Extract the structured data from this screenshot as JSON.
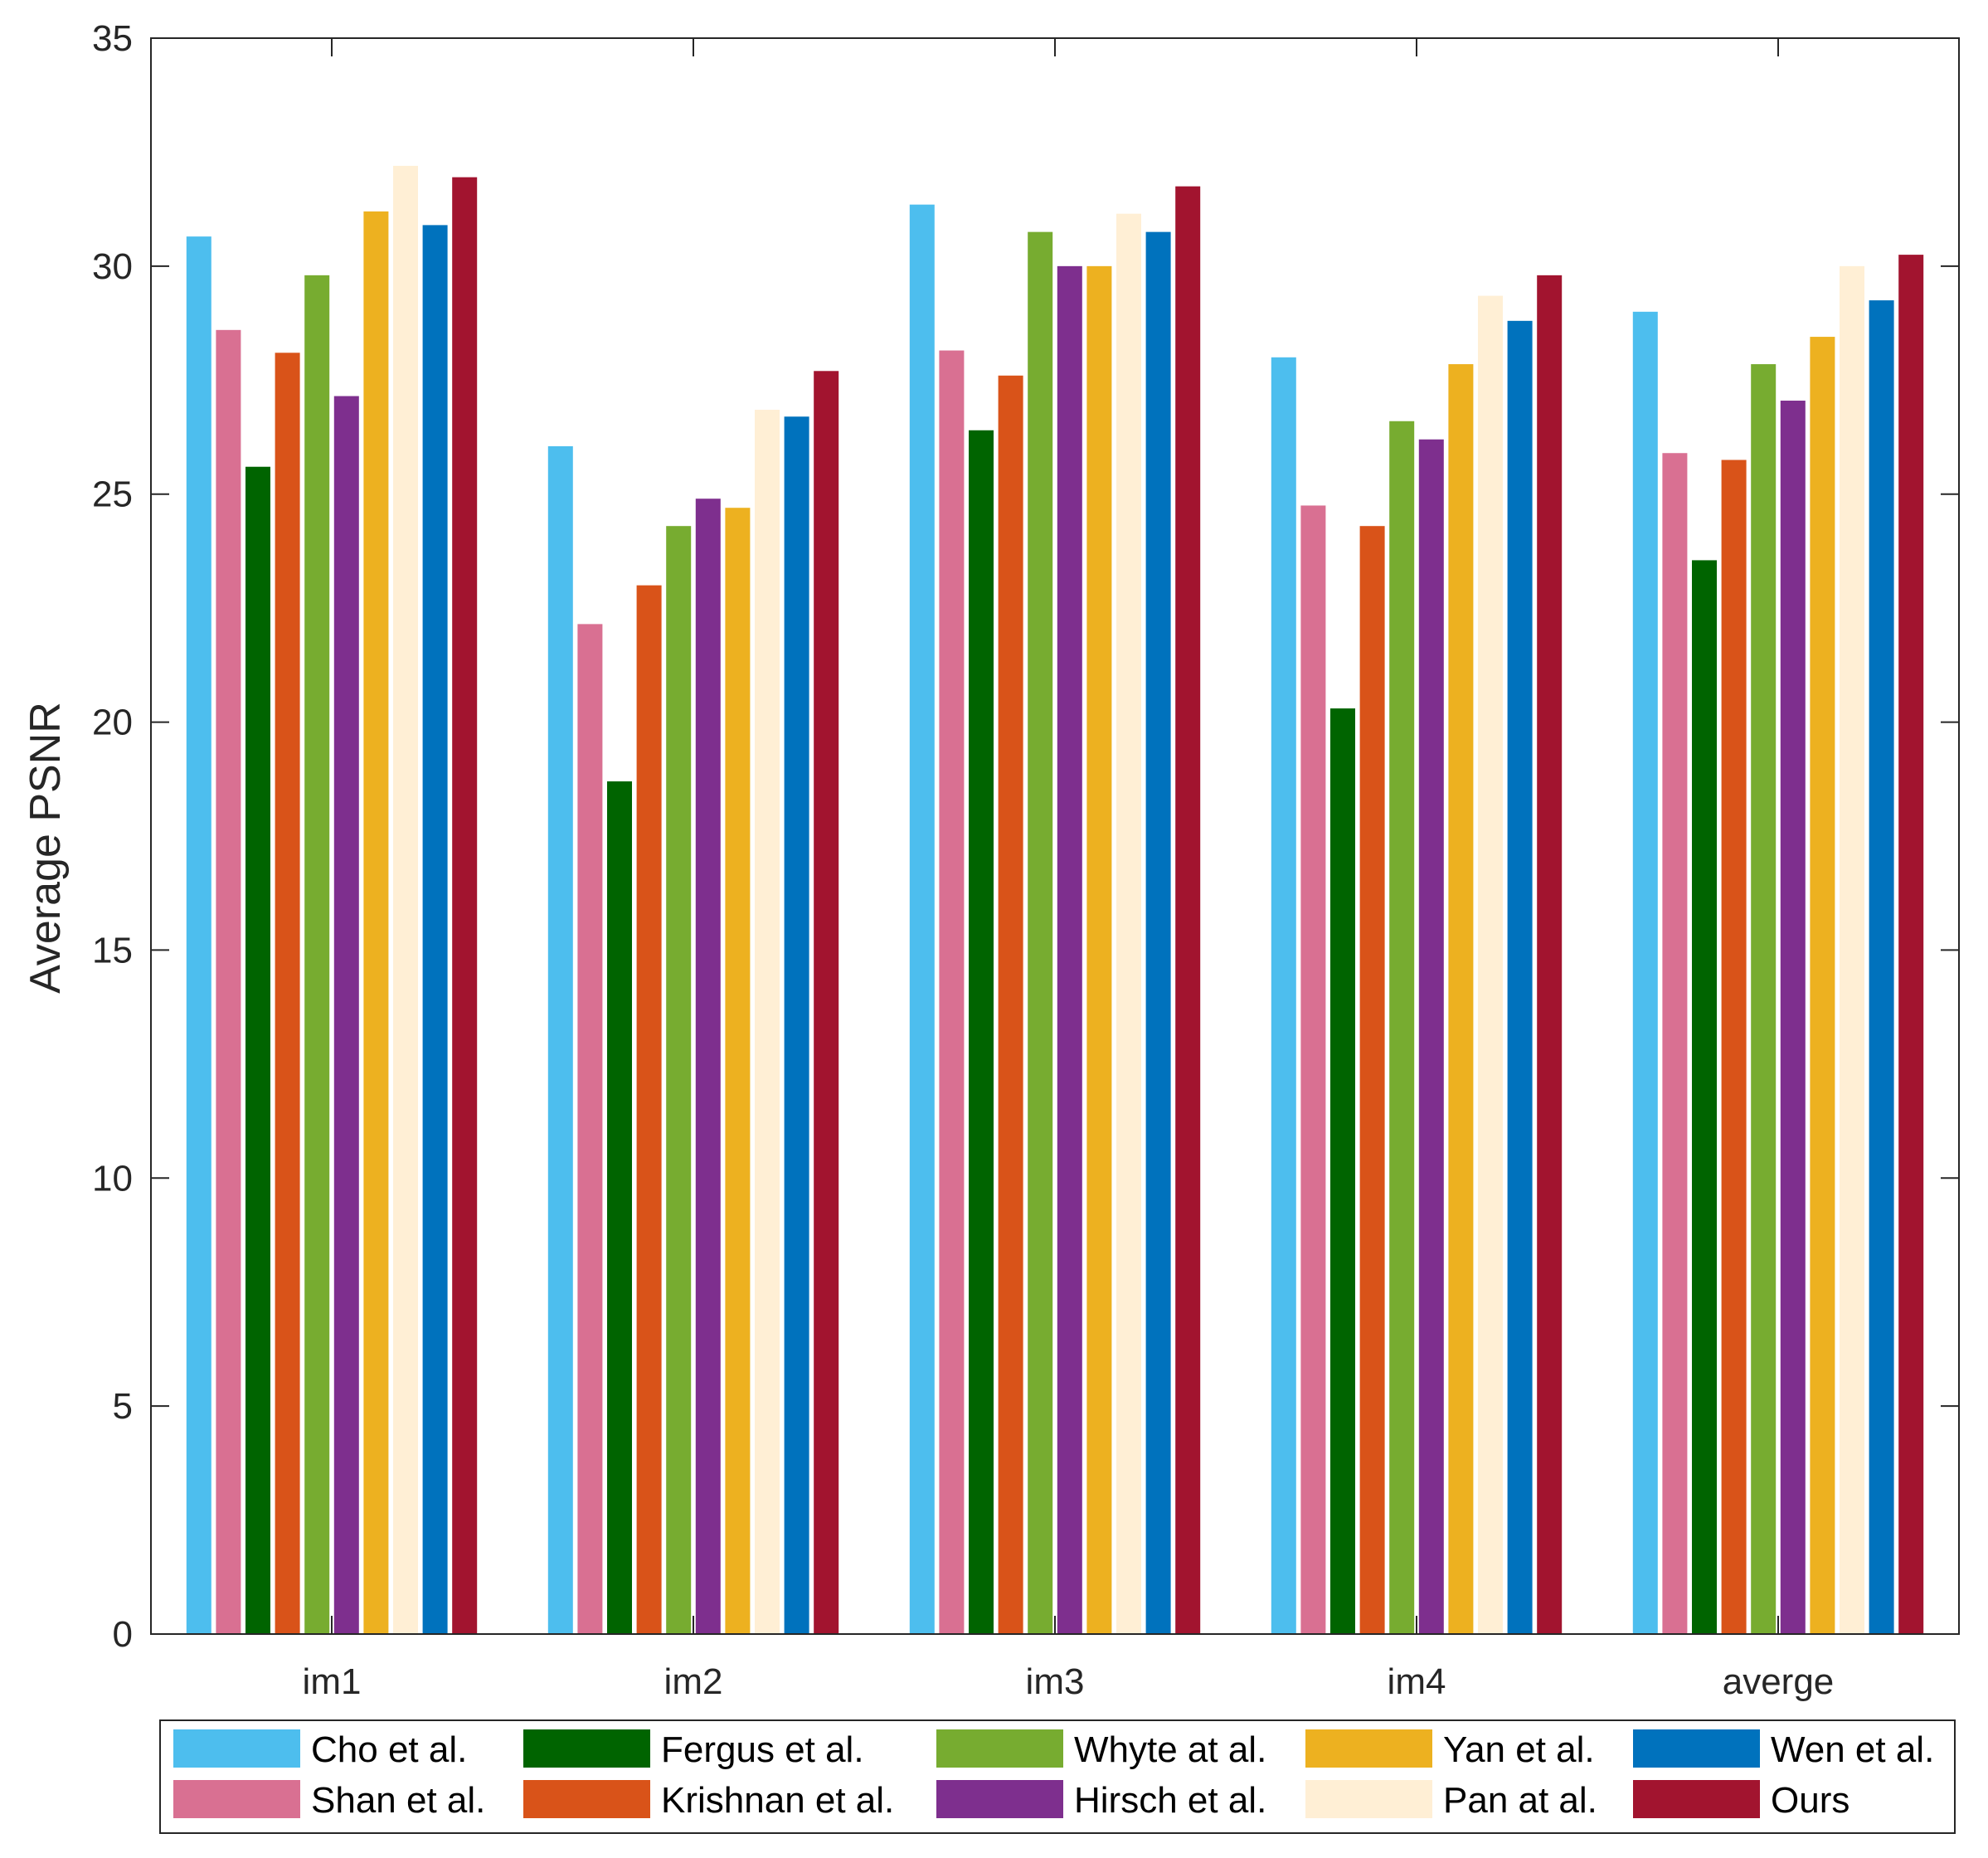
{
  "chart_data": {
    "type": "bar",
    "title": "",
    "xlabel": "",
    "ylabel": "Average PSNR",
    "ylim": [
      0,
      35
    ],
    "yticks": [
      "0",
      "5",
      "10",
      "15",
      "20",
      "25",
      "30",
      "35"
    ],
    "grid": false,
    "legend_position": "bottom",
    "categories": [
      "im1",
      "im2",
      "im3",
      "im4",
      "averge"
    ],
    "series": [
      {
        "name": "Cho et al.",
        "color": "#4DBEEE",
        "values": [
          30.65,
          26.05,
          31.35,
          28.0,
          29.0
        ]
      },
      {
        "name": "Shan et al.",
        "color": "#D97092",
        "values": [
          28.6,
          22.15,
          28.15,
          24.75,
          25.9
        ]
      },
      {
        "name": "Fergus et al.",
        "color": "#006400",
        "values": [
          25.6,
          18.7,
          26.4,
          20.3,
          23.55
        ]
      },
      {
        "name": "Krishnan et al.",
        "color": "#D95319",
        "values": [
          28.1,
          23.0,
          27.6,
          24.3,
          25.75
        ]
      },
      {
        "name": "Whyte at al.",
        "color": "#77AC30",
        "values": [
          29.8,
          24.3,
          30.75,
          26.6,
          27.85
        ]
      },
      {
        "name": "Hirsch et al.",
        "color": "#7E2F8E",
        "values": [
          27.15,
          24.9,
          30.0,
          26.2,
          27.05
        ]
      },
      {
        "name": "Yan et al.",
        "color": "#EDB120",
        "values": [
          31.2,
          24.7,
          30.0,
          27.85,
          28.45
        ]
      },
      {
        "name": "Pan at al.",
        "color": "#FFEFD5",
        "values": [
          32.2,
          26.85,
          31.15,
          29.35,
          30.0
        ]
      },
      {
        "name": "Wen et al.",
        "color": "#0072BD",
        "values": [
          30.9,
          26.7,
          30.75,
          28.8,
          29.25
        ]
      },
      {
        "name": "Ours",
        "color": "#A2142F",
        "values": [
          31.95,
          27.7,
          31.75,
          29.8,
          30.25
        ]
      }
    ],
    "legend_order": [
      "Cho et al.",
      "Fergus et al.",
      "Whyte at al.",
      "Yan et al.",
      "Wen et al.",
      "Shan et al.",
      "Krishnan et al.",
      "Hirsch et al.",
      "Pan at al.",
      "Ours"
    ]
  }
}
